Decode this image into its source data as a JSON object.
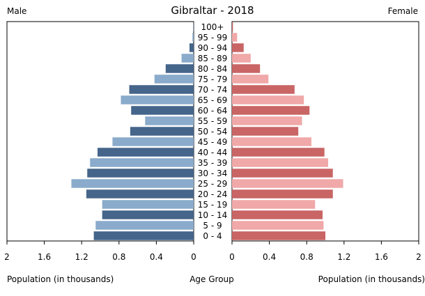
{
  "chart_data": {
    "type": "bar",
    "title": "Gibraltar - 2018",
    "male_label": "Male",
    "female_label": "Female",
    "xlabel_left": "Population (in thousands)",
    "xlabel_center": "Age Group",
    "xlabel_right": "Population (in thousands)",
    "xlim": [
      0,
      2
    ],
    "x_ticks": [
      0,
      0.4,
      0.8,
      1.2,
      1.6,
      2
    ],
    "x_tick_labels": [
      "0",
      "0.4",
      "0.8",
      "1.2",
      "1.6",
      "2"
    ],
    "categories": [
      "100+",
      "95 - 99",
      "90 - 94",
      "85 - 89",
      "80 - 84",
      "75 - 79",
      "70 - 74",
      "65 - 69",
      "60 - 64",
      "55 - 59",
      "50 - 54",
      "45 - 49",
      "40 - 44",
      "35 - 39",
      "30 - 34",
      "25 - 29",
      "20 - 24",
      "15 - 19",
      "10 - 14",
      "5 - 9",
      "0 - 4"
    ],
    "series": [
      {
        "name": "Male",
        "values": [
          0.003,
          0.013,
          0.045,
          0.13,
          0.3,
          0.42,
          0.69,
          0.78,
          0.67,
          0.52,
          0.68,
          0.87,
          1.03,
          1.11,
          1.14,
          1.31,
          1.15,
          0.98,
          0.98,
          1.05,
          1.07
        ]
      },
      {
        "name": "Female",
        "values": [
          0.01,
          0.055,
          0.125,
          0.2,
          0.3,
          0.39,
          0.67,
          0.77,
          0.83,
          0.75,
          0.71,
          0.85,
          0.99,
          1.03,
          1.08,
          1.19,
          1.08,
          0.89,
          0.97,
          0.98,
          1.0
        ]
      }
    ],
    "colors": {
      "male_dark": "#45658a",
      "male_light": "#8aabcb",
      "female_dark": "#c96565",
      "female_light": "#f0a8a8",
      "axis": "#000000"
    }
  }
}
